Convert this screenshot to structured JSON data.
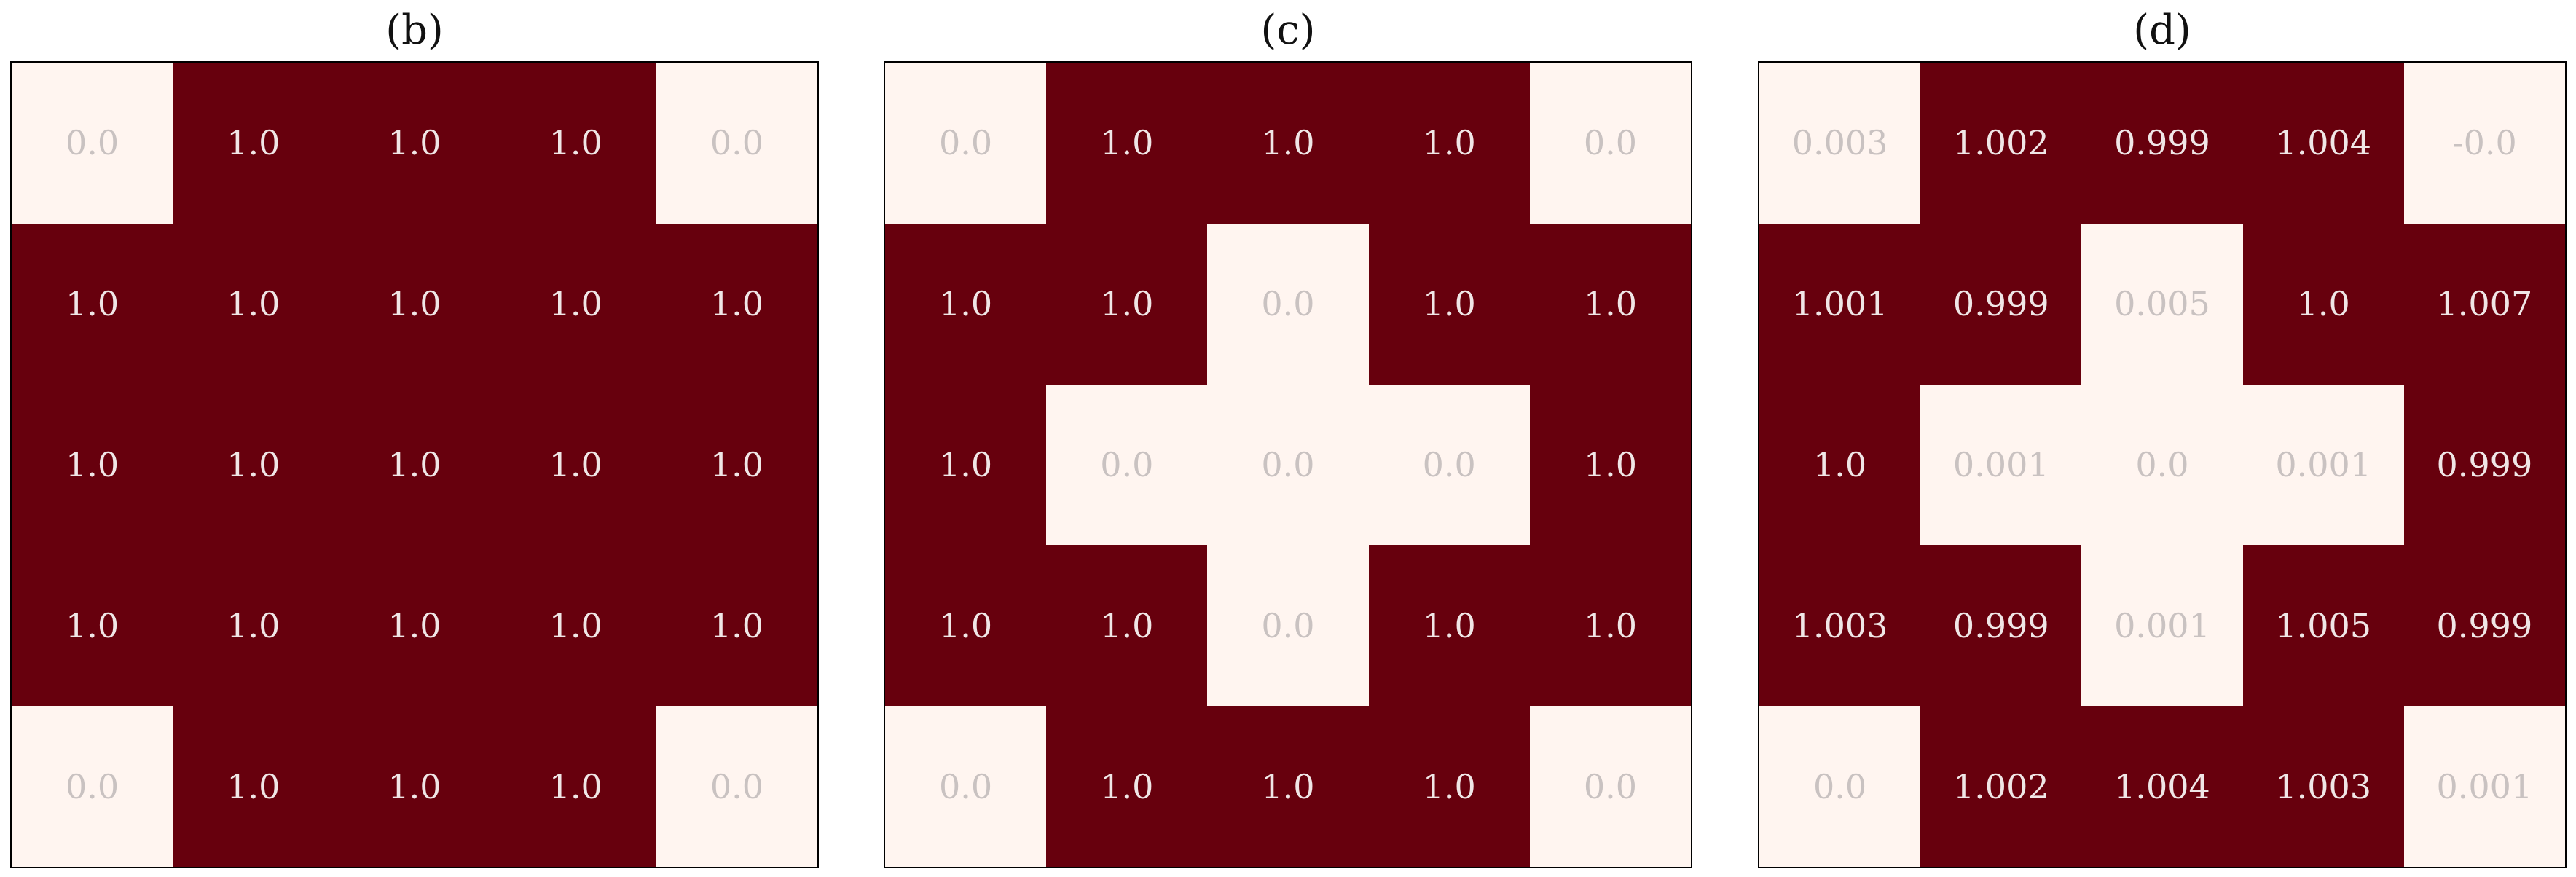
{
  "chart_data": [
    {
      "type": "heatmap",
      "title": "(b)",
      "rows": 5,
      "cols": 5,
      "values": [
        [
          "0.0",
          "1.0",
          "1.0",
          "1.0",
          "0.0"
        ],
        [
          "1.0",
          "1.0",
          "1.0",
          "1.0",
          "1.0"
        ],
        [
          "1.0",
          "1.0",
          "1.0",
          "1.0",
          "1.0"
        ],
        [
          "1.0",
          "1.0",
          "1.0",
          "1.0",
          "1.0"
        ],
        [
          "0.0",
          "1.0",
          "1.0",
          "1.0",
          "0.0"
        ]
      ]
    },
    {
      "type": "heatmap",
      "title": "(c)",
      "rows": 5,
      "cols": 5,
      "values": [
        [
          "0.0",
          "1.0",
          "1.0",
          "1.0",
          "0.0"
        ],
        [
          "1.0",
          "1.0",
          "0.0",
          "1.0",
          "1.0"
        ],
        [
          "1.0",
          "0.0",
          "0.0",
          "0.0",
          "1.0"
        ],
        [
          "1.0",
          "1.0",
          "0.0",
          "1.0",
          "1.0"
        ],
        [
          "0.0",
          "1.0",
          "1.0",
          "1.0",
          "0.0"
        ]
      ]
    },
    {
      "type": "heatmap",
      "title": "(d)",
      "rows": 5,
      "cols": 5,
      "values": [
        [
          "0.003",
          "1.002",
          "0.999",
          "1.004",
          "-0.0"
        ],
        [
          "1.001",
          "0.999",
          "0.005",
          "1.0",
          "1.007"
        ],
        [
          "1.0",
          "0.001",
          "0.0",
          "0.001",
          "0.999"
        ],
        [
          "1.003",
          "0.999",
          "0.001",
          "1.005",
          "0.999"
        ],
        [
          "0.0",
          "1.002",
          "1.004",
          "1.003",
          "0.001"
        ]
      ]
    }
  ],
  "colors": {
    "high": "#67000d",
    "low": "#fff5f0",
    "text_on_high": "#f0e6e6",
    "text_on_low": "#c9c2c1"
  }
}
